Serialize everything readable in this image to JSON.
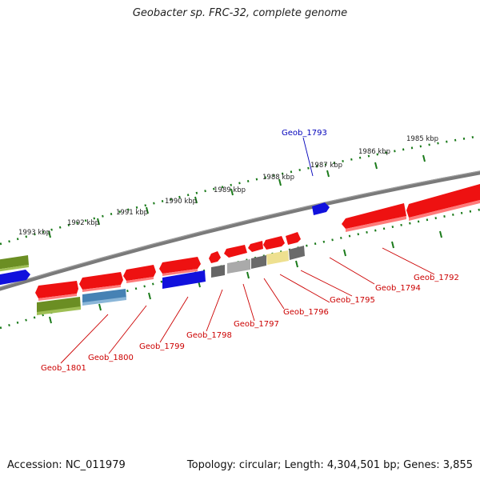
{
  "title": "Geobacter sp. FRC-32, complete genome",
  "footer": {
    "accession": "Accession: NC_011979",
    "summary": "Topology: circular; Length: 4,304,501 bp; Genes: 3,855"
  },
  "scale_labels": [
    "1985 kbp",
    "1986 kbp",
    "1987 kbp",
    "1988 kbp",
    "1989 kbp",
    "1990 kbp",
    "1991 kbp",
    "1992 kbp",
    "1993 kbp"
  ],
  "gene_labels": [
    {
      "text": "Geob_1793",
      "color": "#0000bb"
    },
    {
      "text": "Geob_1792",
      "color": "#cc0000"
    },
    {
      "text": "Geob_1794",
      "color": "#cc0000"
    },
    {
      "text": "Geob_1795",
      "color": "#cc0000"
    },
    {
      "text": "Geob_1796",
      "color": "#cc0000"
    },
    {
      "text": "Geob_1797",
      "color": "#cc0000"
    },
    {
      "text": "Geob_1798",
      "color": "#cc0000"
    },
    {
      "text": "Geob_1799",
      "color": "#cc0000"
    },
    {
      "text": "Geob_1800",
      "color": "#cc0000"
    },
    {
      "text": "Geob_1801",
      "color": "#cc0000"
    }
  ],
  "colors": {
    "backbone": "#7a7a7a",
    "ticks": "#1a7a1a",
    "gene_red": "#ee1111",
    "gene_blue": "#1111dd",
    "gene_olive": "#6b8e23",
    "gene_steel": "#4682b4",
    "gene_gray": "#777777",
    "gene_light_gray": "#bbbbbb",
    "gene_khaki": "#eee090"
  }
}
